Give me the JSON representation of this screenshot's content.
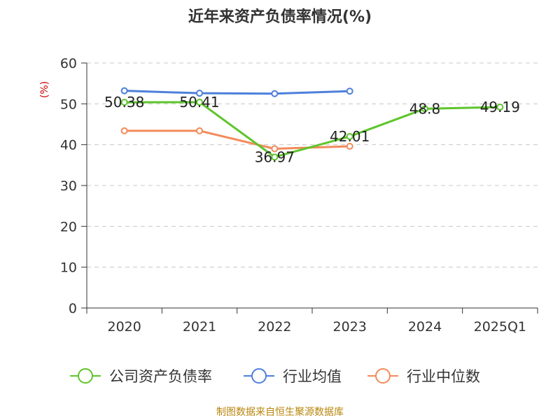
{
  "title": "近年来资产负债率情况(%)",
  "footer": "制图数据来自恒生聚源数据库",
  "chart_data": {
    "type": "line",
    "title": "近年来资产负债率情况(%)",
    "ylabel": "(%)",
    "xlabel": "",
    "categories": [
      "2020",
      "2021",
      "2022",
      "2023",
      "2024",
      "2025Q1"
    ],
    "ylim": [
      0,
      60
    ],
    "yticks": [
      0,
      10,
      20,
      30,
      40,
      50,
      60
    ],
    "grid": "horizontal dashed",
    "legend": "bottom",
    "series": [
      {
        "name": "公司资产负债率",
        "color": "#5dc52b",
        "values": [
          50.38,
          50.41,
          36.97,
          42.01,
          48.8,
          49.19
        ],
        "labels": [
          "50.38",
          "50.41",
          "36.97",
          "42.01",
          "48.8",
          "49.19"
        ]
      },
      {
        "name": "行业均值",
        "color": "#4e7fdb",
        "values": [
          53.2,
          52.6,
          52.5,
          53.1,
          null,
          null
        ]
      },
      {
        "name": "行业中位数",
        "color": "#f28b5b",
        "values": [
          43.4,
          43.4,
          39.0,
          39.6,
          null,
          null
        ]
      }
    ]
  }
}
